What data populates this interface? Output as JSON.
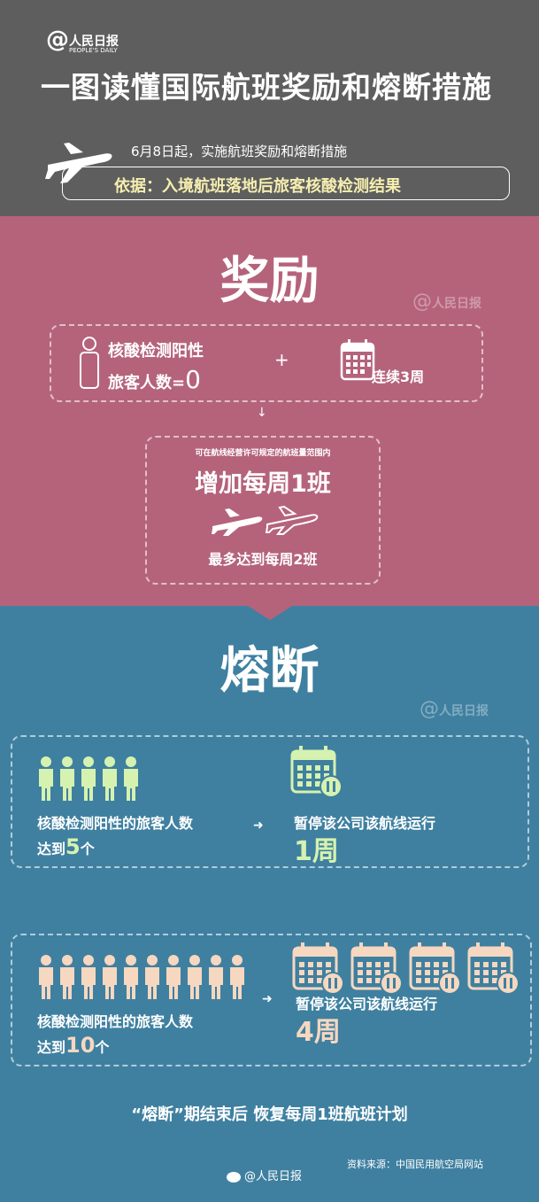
{
  "header": {
    "logo_text": "人民日报",
    "logo_sub": "PEOPLE'S DAILY",
    "title": "一图读懂国际航班奖励和熔断措施",
    "date_line": "6月8日起，实施航班奖励和熔断措施",
    "basis_line": "依据：入境航班落地后旅客核酸检测结果"
  },
  "reward": {
    "heading": "奖励",
    "cond_line1": "核酸检测阳性",
    "cond_line2": "旅客人数=",
    "cond_zero": "0",
    "plus": "+",
    "weeks": "连续3周",
    "arrow": "↓",
    "small_note": "可在航线经营许可规定的航班量范围内",
    "add_flight": "增加每周1班",
    "max_flight": "最多达到每周2班"
  },
  "fuse": {
    "heading": "熔断",
    "row1": {
      "people_count": 5,
      "cond_line1": "核酸检测阳性的旅客人数",
      "cond_prefix": "达到",
      "cond_num": "5",
      "cond_suffix": "个",
      "arrow": "➜",
      "action": "暂停该公司该航线运行",
      "duration": "1周",
      "calendars": 1,
      "color": "#d6f2b0"
    },
    "row2": {
      "people_count": 10,
      "cond_line1": "核酸检测阳性的旅客人数",
      "cond_prefix": "达到",
      "cond_num": "10",
      "cond_suffix": "个",
      "arrow": "➜",
      "action": "暂停该公司该航线运行",
      "duration": "4周",
      "calendars": 4,
      "color": "#f6d7c0"
    },
    "recover": "“熔断”期结束后 恢复每周1班航班计划",
    "weibo": "@人民日报",
    "source": "资料来源：中国民用航空局网站"
  },
  "colors": {
    "top_bg": "#5e5e5e",
    "reward_bg": "#b5637b",
    "fuse_bg": "#3f80a0",
    "yellow": "#f5eeb0",
    "green": "#d6f2b0",
    "peach": "#f6d7c0"
  },
  "icons": [
    "plane-icon",
    "person-icon",
    "calendar-icon",
    "pause-icon",
    "weibo-icon"
  ]
}
